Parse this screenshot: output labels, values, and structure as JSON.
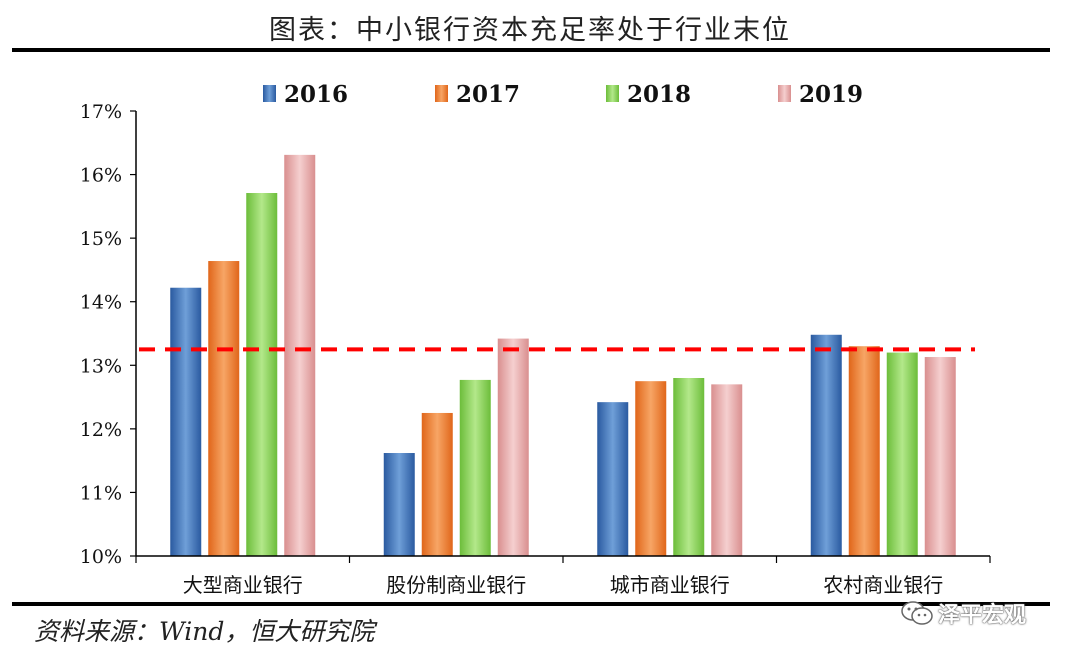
{
  "page": {
    "title": "图表：中小银行资本充足率处于行业末位",
    "source": "资料来源：Wind，恒大研究院",
    "watermark": "泽平宏观",
    "watermark_icon": "wechat-icon"
  },
  "chart_data": {
    "type": "bar",
    "categories": [
      "大型商业银行",
      "股份制商业银行",
      "城市商业银行",
      "农村商业银行"
    ],
    "series": [
      {
        "name": "2016",
        "color": "#3a6fb5",
        "values": [
          14.22,
          11.62,
          12.42,
          13.48
        ]
      },
      {
        "name": "2017",
        "color": "#f07a24",
        "values": [
          14.64,
          12.25,
          12.75,
          13.3
        ]
      },
      {
        "name": "2018",
        "color": "#7fcc4a",
        "values": [
          15.71,
          12.77,
          12.8,
          13.2
        ]
      },
      {
        "name": "2019",
        "color": "#e7a7a7",
        "values": [
          16.31,
          13.42,
          12.7,
          13.13
        ]
      }
    ],
    "reference_line": {
      "value": 13.25,
      "color": "#ff0000",
      "style": "dashed"
    },
    "ylim": [
      10,
      17
    ],
    "yticks": [
      "10%",
      "11%",
      "12%",
      "13%",
      "14%",
      "15%",
      "16%",
      "17%"
    ],
    "legend_position": "top",
    "grid": false
  }
}
